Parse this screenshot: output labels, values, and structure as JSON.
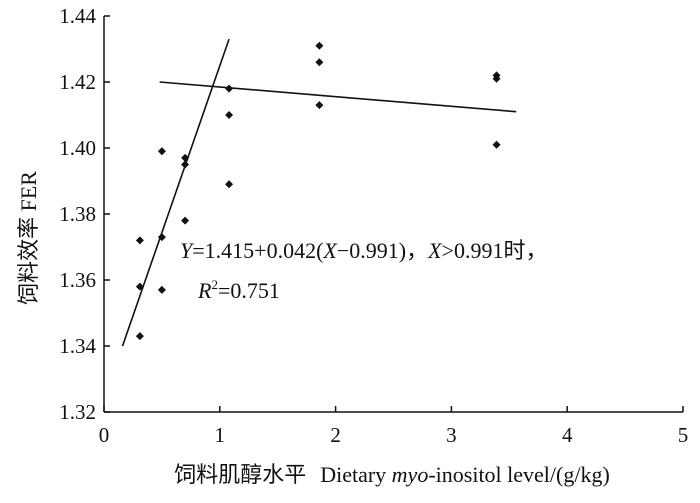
{
  "chart_data": {
    "type": "scatter",
    "xlabel_cn": "饲料肌醇水平",
    "xlabel_en_prefix": "Dietary ",
    "xlabel_en_italic": "myo",
    "xlabel_en_suffix": "-inositol level/(g/kg)",
    "ylabel": "饲料效率  FER",
    "xlim": [
      0,
      5
    ],
    "ylim": [
      1.32,
      1.44
    ],
    "xticks": [
      0,
      1,
      2,
      3,
      4,
      5
    ],
    "xtick_labels": [
      "0",
      "1",
      "2",
      "3",
      "4",
      "5"
    ],
    "yticks": [
      1.32,
      1.34,
      1.36,
      1.38,
      1.4,
      1.42,
      1.44
    ],
    "ytick_labels": [
      "1.32",
      "1.34",
      "1.36",
      "1.38",
      "1.40",
      "1.42",
      "1.44"
    ],
    "grid": false,
    "legend": "none",
    "points": [
      {
        "x": 0.31,
        "y": 1.343
      },
      {
        "x": 0.31,
        "y": 1.358
      },
      {
        "x": 0.31,
        "y": 1.372
      },
      {
        "x": 0.5,
        "y": 1.357
      },
      {
        "x": 0.5,
        "y": 1.373
      },
      {
        "x": 0.5,
        "y": 1.399
      },
      {
        "x": 0.7,
        "y": 1.378
      },
      {
        "x": 0.7,
        "y": 1.395
      },
      {
        "x": 0.7,
        "y": 1.397
      },
      {
        "x": 1.08,
        "y": 1.389
      },
      {
        "x": 1.08,
        "y": 1.41
      },
      {
        "x": 1.08,
        "y": 1.418
      },
      {
        "x": 1.86,
        "y": 1.413
      },
      {
        "x": 1.86,
        "y": 1.426
      },
      {
        "x": 1.86,
        "y": 1.431
      },
      {
        "x": 3.39,
        "y": 1.401
      },
      {
        "x": 3.39,
        "y": 1.421
      },
      {
        "x": 3.39,
        "y": 1.422
      }
    ],
    "fit_lines": [
      {
        "x1": 0.16,
        "y1": 1.34,
        "x2": 1.08,
        "y2": 1.433
      },
      {
        "x1": 0.48,
        "y1": 1.42,
        "x2": 3.56,
        "y2": 1.411
      }
    ],
    "annotation": {
      "eq_y": "Y",
      "eq_part1": "=1.415+0.042(",
      "eq_x1": "X",
      "eq_part2": "−0.991)，",
      "eq_x2": "X",
      "eq_part3": ">0.991时，",
      "r2_r": "R",
      "r2_sup": "2",
      "r2_value": "=0.751"
    },
    "colors": {
      "marker": "#111111",
      "line": "#111111",
      "axis": "#111111"
    }
  }
}
